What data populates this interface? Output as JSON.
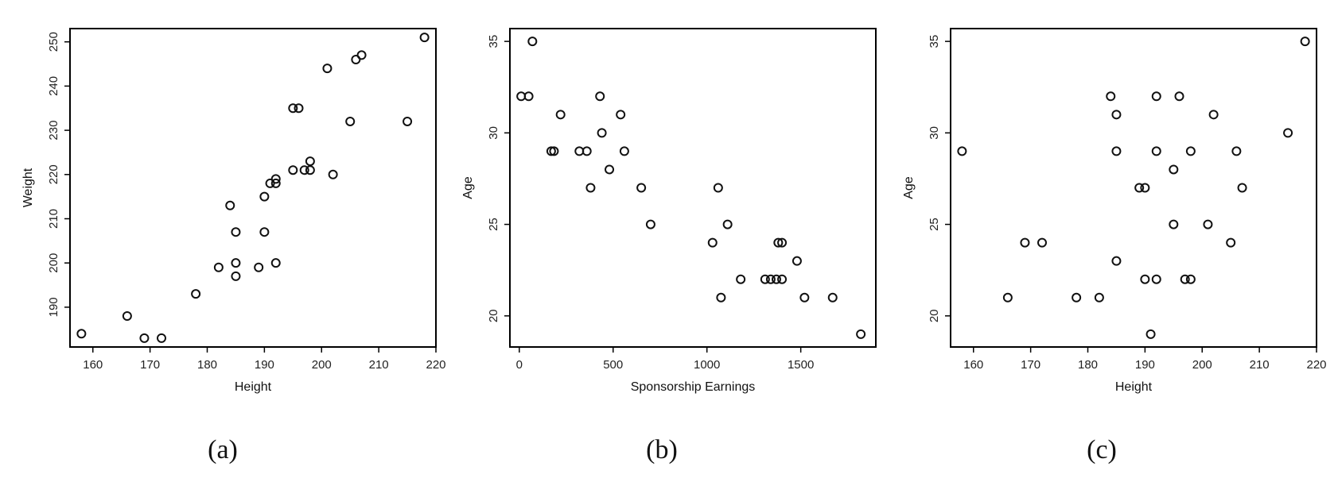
{
  "chart_data": [
    {
      "type": "scatter",
      "panel_caption": "(a)",
      "xlabel": "Height",
      "ylabel": "Weight",
      "xlim": [
        156,
        220
      ],
      "ylim": [
        181,
        253
      ],
      "xticks": [
        160,
        170,
        180,
        190,
        200,
        210,
        220
      ],
      "yticks": [
        190,
        200,
        210,
        220,
        230,
        240,
        250
      ],
      "points": [
        {
          "x": 158,
          "y": 184
        },
        {
          "x": 166,
          "y": 188
        },
        {
          "x": 169,
          "y": 183
        },
        {
          "x": 172,
          "y": 183
        },
        {
          "x": 178,
          "y": 193
        },
        {
          "x": 182,
          "y": 199
        },
        {
          "x": 184,
          "y": 213
        },
        {
          "x": 185,
          "y": 207
        },
        {
          "x": 185,
          "y": 200
        },
        {
          "x": 185,
          "y": 197
        },
        {
          "x": 189,
          "y": 199
        },
        {
          "x": 190,
          "y": 215
        },
        {
          "x": 190,
          "y": 207
        },
        {
          "x": 191,
          "y": 218
        },
        {
          "x": 192,
          "y": 219
        },
        {
          "x": 192,
          "y": 218
        },
        {
          "x": 192,
          "y": 200
        },
        {
          "x": 195,
          "y": 235
        },
        {
          "x": 195,
          "y": 221
        },
        {
          "x": 196,
          "y": 235
        },
        {
          "x": 197,
          "y": 221
        },
        {
          "x": 198,
          "y": 223
        },
        {
          "x": 198,
          "y": 221
        },
        {
          "x": 201,
          "y": 244
        },
        {
          "x": 202,
          "y": 220
        },
        {
          "x": 205,
          "y": 232
        },
        {
          "x": 206,
          "y": 246
        },
        {
          "x": 207,
          "y": 247
        },
        {
          "x": 215,
          "y": 232
        },
        {
          "x": 218,
          "y": 251
        }
      ]
    },
    {
      "type": "scatter",
      "panel_caption": "(b)",
      "xlabel": "Sponsorship Earnings",
      "ylabel": "Age",
      "xlim": [
        -50,
        1900
      ],
      "ylim": [
        18.3,
        35.7
      ],
      "xticks": [
        0,
        500,
        1000,
        1500
      ],
      "yticks": [
        20,
        25,
        30,
        35
      ],
      "points": [
        {
          "x": 10,
          "y": 32
        },
        {
          "x": 50,
          "y": 32
        },
        {
          "x": 70,
          "y": 35
        },
        {
          "x": 170,
          "y": 29
        },
        {
          "x": 185,
          "y": 29
        },
        {
          "x": 220,
          "y": 31
        },
        {
          "x": 320,
          "y": 29
        },
        {
          "x": 360,
          "y": 29
        },
        {
          "x": 380,
          "y": 27
        },
        {
          "x": 430,
          "y": 32
        },
        {
          "x": 440,
          "y": 30
        },
        {
          "x": 480,
          "y": 28
        },
        {
          "x": 540,
          "y": 31
        },
        {
          "x": 560,
          "y": 29
        },
        {
          "x": 650,
          "y": 27
        },
        {
          "x": 700,
          "y": 25
        },
        {
          "x": 1030,
          "y": 24
        },
        {
          "x": 1060,
          "y": 27
        },
        {
          "x": 1075,
          "y": 21
        },
        {
          "x": 1110,
          "y": 25
        },
        {
          "x": 1180,
          "y": 22
        },
        {
          "x": 1310,
          "y": 22
        },
        {
          "x": 1340,
          "y": 22
        },
        {
          "x": 1370,
          "y": 22
        },
        {
          "x": 1380,
          "y": 24
        },
        {
          "x": 1400,
          "y": 24
        },
        {
          "x": 1400,
          "y": 22
        },
        {
          "x": 1480,
          "y": 23
        },
        {
          "x": 1520,
          "y": 21
        },
        {
          "x": 1670,
          "y": 21
        },
        {
          "x": 1820,
          "y": 19
        }
      ]
    },
    {
      "type": "scatter",
      "panel_caption": "(c)",
      "xlabel": "Height",
      "ylabel": "Age",
      "xlim": [
        156,
        220
      ],
      "ylim": [
        18.3,
        35.7
      ],
      "xticks": [
        160,
        170,
        180,
        190,
        200,
        210,
        220
      ],
      "yticks": [
        20,
        25,
        30,
        35
      ],
      "points": [
        {
          "x": 158,
          "y": 29
        },
        {
          "x": 166,
          "y": 21
        },
        {
          "x": 169,
          "y": 24
        },
        {
          "x": 172,
          "y": 24
        },
        {
          "x": 178,
          "y": 21
        },
        {
          "x": 182,
          "y": 21
        },
        {
          "x": 184,
          "y": 32
        },
        {
          "x": 185,
          "y": 31
        },
        {
          "x": 185,
          "y": 29
        },
        {
          "x": 185,
          "y": 23
        },
        {
          "x": 189,
          "y": 27
        },
        {
          "x": 190,
          "y": 27
        },
        {
          "x": 190,
          "y": 22
        },
        {
          "x": 191,
          "y": 19
        },
        {
          "x": 192,
          "y": 32
        },
        {
          "x": 192,
          "y": 29
        },
        {
          "x": 192,
          "y": 22
        },
        {
          "x": 195,
          "y": 28
        },
        {
          "x": 195,
          "y": 25
        },
        {
          "x": 196,
          "y": 32
        },
        {
          "x": 197,
          "y": 22
        },
        {
          "x": 198,
          "y": 22
        },
        {
          "x": 198,
          "y": 29
        },
        {
          "x": 201,
          "y": 25
        },
        {
          "x": 202,
          "y": 31
        },
        {
          "x": 205,
          "y": 24
        },
        {
          "x": 206,
          "y": 29
        },
        {
          "x": 207,
          "y": 27
        },
        {
          "x": 215,
          "y": 30
        },
        {
          "x": 218,
          "y": 35
        }
      ]
    }
  ],
  "style": {
    "axis_color": "#000000",
    "marker_stroke": "#111111",
    "background": "#ffffff"
  }
}
